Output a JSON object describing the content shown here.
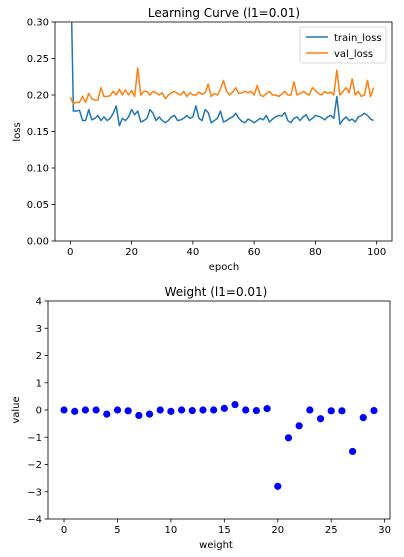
{
  "chart_data": [
    {
      "type": "line",
      "title": "Learning Curve (l1=0.01)",
      "xlabel": "epoch",
      "ylabel": "loss",
      "xlim": [
        -5,
        105
      ],
      "ylim": [
        0.0,
        0.3
      ],
      "xticks": [
        0,
        20,
        40,
        60,
        80,
        100
      ],
      "yticks": [
        0.0,
        0.05,
        0.1,
        0.15,
        0.2,
        0.25,
        0.3
      ],
      "xtick_labels": [
        "0",
        "20",
        "40",
        "60",
        "80",
        "100"
      ],
      "ytick_labels": [
        "0.00",
        "0.05",
        "0.10",
        "0.15",
        "0.20",
        "0.25",
        "0.30"
      ],
      "legend": "top-right",
      "grid": false,
      "series": [
        {
          "name": "train_loss",
          "color": "#1f77b4",
          "x": [
            0,
            1,
            2,
            3,
            4,
            5,
            6,
            7,
            8,
            9,
            10,
            11,
            12,
            13,
            14,
            15,
            16,
            17,
            18,
            19,
            20,
            21,
            22,
            23,
            24,
            25,
            26,
            27,
            28,
            29,
            30,
            31,
            32,
            33,
            34,
            35,
            36,
            37,
            38,
            39,
            40,
            41,
            42,
            43,
            44,
            45,
            46,
            47,
            48,
            49,
            50,
            51,
            52,
            53,
            54,
            55,
            56,
            57,
            58,
            59,
            60,
            61,
            62,
            63,
            64,
            65,
            66,
            67,
            68,
            69,
            70,
            71,
            72,
            73,
            74,
            75,
            76,
            77,
            78,
            79,
            80,
            81,
            82,
            83,
            84,
            85,
            86,
            87,
            88,
            89,
            90,
            91,
            92,
            93,
            94,
            95,
            96,
            97,
            98,
            99
          ],
          "y": [
            0.4,
            0.178,
            0.178,
            0.179,
            0.165,
            0.165,
            0.18,
            0.166,
            0.168,
            0.172,
            0.165,
            0.17,
            0.165,
            0.168,
            0.175,
            0.185,
            0.158,
            0.168,
            0.165,
            0.17,
            0.18,
            0.173,
            0.178,
            0.163,
            0.165,
            0.168,
            0.18,
            0.175,
            0.165,
            0.17,
            0.165,
            0.162,
            0.165,
            0.17,
            0.172,
            0.165,
            0.166,
            0.168,
            0.172,
            0.168,
            0.17,
            0.185,
            0.168,
            0.165,
            0.18,
            0.176,
            0.162,
            0.165,
            0.168,
            0.178,
            0.163,
            0.165,
            0.168,
            0.17,
            0.175,
            0.168,
            0.164,
            0.162,
            0.167,
            0.165,
            0.162,
            0.165,
            0.168,
            0.166,
            0.172,
            0.163,
            0.167,
            0.17,
            0.172,
            0.171,
            0.176,
            0.165,
            0.162,
            0.168,
            0.17,
            0.165,
            0.17,
            0.173,
            0.165,
            0.168,
            0.172,
            0.171,
            0.169,
            0.166,
            0.17,
            0.172,
            0.168,
            0.198,
            0.16,
            0.166,
            0.17,
            0.165,
            0.167,
            0.163,
            0.17,
            0.172,
            0.175,
            0.172,
            0.167,
            0.165
          ]
        },
        {
          "name": "val_loss",
          "color": "#ff7f0e",
          "x": [
            0,
            1,
            2,
            3,
            4,
            5,
            6,
            7,
            8,
            9,
            10,
            11,
            12,
            13,
            14,
            15,
            16,
            17,
            18,
            19,
            20,
            21,
            22,
            23,
            24,
            25,
            26,
            27,
            28,
            29,
            30,
            31,
            32,
            33,
            34,
            35,
            36,
            37,
            38,
            39,
            40,
            41,
            42,
            43,
            44,
            45,
            46,
            47,
            48,
            49,
            50,
            51,
            52,
            53,
            54,
            55,
            56,
            57,
            58,
            59,
            60,
            61,
            62,
            63,
            64,
            65,
            66,
            67,
            68,
            69,
            70,
            71,
            72,
            73,
            74,
            75,
            76,
            77,
            78,
            79,
            80,
            81,
            82,
            83,
            84,
            85,
            86,
            87,
            88,
            89,
            90,
            91,
            92,
            93,
            94,
            95,
            96,
            97,
            98,
            99
          ],
          "y": [
            0.197,
            0.188,
            0.19,
            0.19,
            0.198,
            0.19,
            0.202,
            0.195,
            0.193,
            0.193,
            0.21,
            0.198,
            0.198,
            0.199,
            0.205,
            0.2,
            0.208,
            0.2,
            0.207,
            0.2,
            0.206,
            0.198,
            0.237,
            0.2,
            0.205,
            0.205,
            0.2,
            0.205,
            0.203,
            0.2,
            0.203,
            0.195,
            0.2,
            0.203,
            0.205,
            0.202,
            0.2,
            0.205,
            0.198,
            0.203,
            0.2,
            0.2,
            0.204,
            0.201,
            0.203,
            0.215,
            0.198,
            0.202,
            0.2,
            0.208,
            0.22,
            0.205,
            0.2,
            0.204,
            0.21,
            0.202,
            0.203,
            0.205,
            0.203,
            0.205,
            0.2,
            0.213,
            0.2,
            0.198,
            0.202,
            0.205,
            0.2,
            0.2,
            0.198,
            0.201,
            0.205,
            0.2,
            0.2,
            0.218,
            0.2,
            0.202,
            0.205,
            0.202,
            0.2,
            0.21,
            0.206,
            0.202,
            0.2,
            0.205,
            0.202,
            0.204,
            0.2,
            0.234,
            0.2,
            0.205,
            0.21,
            0.203,
            0.222,
            0.2,
            0.205,
            0.198,
            0.2,
            0.22,
            0.198,
            0.21
          ]
        }
      ]
    },
    {
      "type": "scatter",
      "title": "Weight (l1=0.01)",
      "xlabel": "weight",
      "ylabel": "value",
      "xlim": [
        -1.5,
        30.5
      ],
      "ylim": [
        -4,
        4
      ],
      "xticks": [
        0,
        5,
        10,
        15,
        20,
        25,
        30
      ],
      "yticks": [
        -4,
        -3,
        -2,
        -1,
        0,
        1,
        2,
        3,
        4
      ],
      "xtick_labels": [
        "0",
        "5",
        "10",
        "15",
        "20",
        "25",
        "30"
      ],
      "ytick_labels": [
        "−4",
        "−3",
        "−2",
        "−1",
        "0",
        "1",
        "2",
        "3",
        "4"
      ],
      "grid": false,
      "series": [
        {
          "color": "#0000ff",
          "x": [
            0,
            1,
            2,
            3,
            4,
            5,
            6,
            7,
            8,
            9,
            10,
            11,
            12,
            13,
            14,
            15,
            16,
            17,
            18,
            19,
            20,
            21,
            22,
            23,
            24,
            25,
            26,
            27,
            28,
            29
          ],
          "y": [
            0.0,
            -0.05,
            0.0,
            0.0,
            -0.15,
            0.0,
            -0.03,
            -0.2,
            -0.15,
            0.0,
            -0.05,
            0.0,
            -0.02,
            0.0,
            0.0,
            0.06,
            0.2,
            0.0,
            -0.02,
            0.05,
            -2.8,
            -1.02,
            -0.58,
            0.0,
            -0.32,
            -0.03,
            -0.03,
            -1.52,
            -0.28,
            -0.02
          ]
        }
      ]
    }
  ]
}
